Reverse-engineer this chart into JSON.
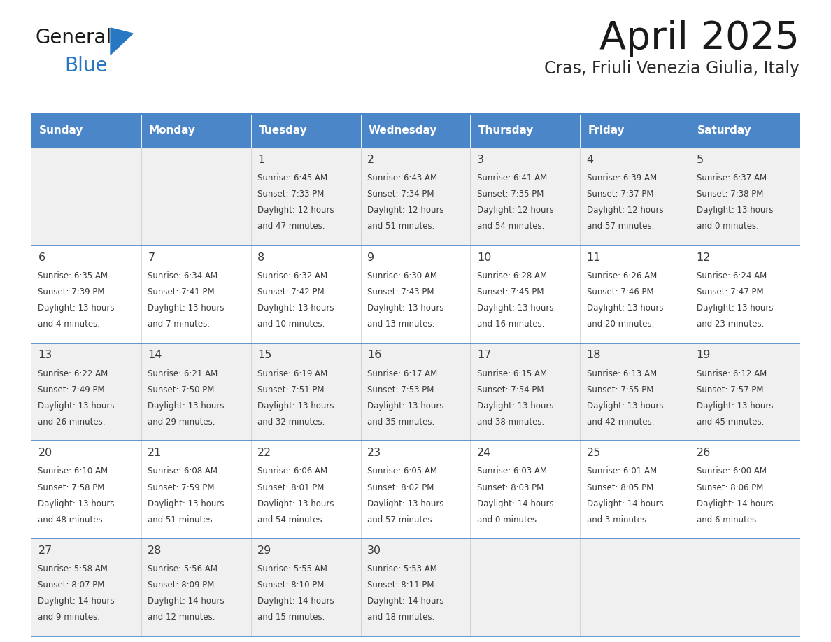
{
  "title": "April 2025",
  "subtitle": "Cras, Friuli Venezia Giulia, Italy",
  "days_of_week": [
    "Sunday",
    "Monday",
    "Tuesday",
    "Wednesday",
    "Thursday",
    "Friday",
    "Saturday"
  ],
  "header_bg": "#4a86c8",
  "header_text": "#ffffff",
  "row_bg_odd": "#f0f0f0",
  "row_bg_even": "#ffffff",
  "border_color": "#4a86c8",
  "text_color": "#3a3a3a",
  "title_color": "#1a1a1a",
  "subtitle_color": "#2a2a2a",
  "logo_general_color": "#1a1a1a",
  "logo_blue_color": "#2777c2",
  "logo_triangle_color": "#2777c2",
  "calendar_data": [
    [
      {
        "day": "",
        "sunrise": "",
        "sunset": "",
        "daylight": ""
      },
      {
        "day": "",
        "sunrise": "",
        "sunset": "",
        "daylight": ""
      },
      {
        "day": "1",
        "sunrise": "6:45 AM",
        "sunset": "7:33 PM",
        "daylight": "12 hours and 47 minutes."
      },
      {
        "day": "2",
        "sunrise": "6:43 AM",
        "sunset": "7:34 PM",
        "daylight": "12 hours and 51 minutes."
      },
      {
        "day": "3",
        "sunrise": "6:41 AM",
        "sunset": "7:35 PM",
        "daylight": "12 hours and 54 minutes."
      },
      {
        "day": "4",
        "sunrise": "6:39 AM",
        "sunset": "7:37 PM",
        "daylight": "12 hours and 57 minutes."
      },
      {
        "day": "5",
        "sunrise": "6:37 AM",
        "sunset": "7:38 PM",
        "daylight": "13 hours and 0 minutes."
      }
    ],
    [
      {
        "day": "6",
        "sunrise": "6:35 AM",
        "sunset": "7:39 PM",
        "daylight": "13 hours and 4 minutes."
      },
      {
        "day": "7",
        "sunrise": "6:34 AM",
        "sunset": "7:41 PM",
        "daylight": "13 hours and 7 minutes."
      },
      {
        "day": "8",
        "sunrise": "6:32 AM",
        "sunset": "7:42 PM",
        "daylight": "13 hours and 10 minutes."
      },
      {
        "day": "9",
        "sunrise": "6:30 AM",
        "sunset": "7:43 PM",
        "daylight": "13 hours and 13 minutes."
      },
      {
        "day": "10",
        "sunrise": "6:28 AM",
        "sunset": "7:45 PM",
        "daylight": "13 hours and 16 minutes."
      },
      {
        "day": "11",
        "sunrise": "6:26 AM",
        "sunset": "7:46 PM",
        "daylight": "13 hours and 20 minutes."
      },
      {
        "day": "12",
        "sunrise": "6:24 AM",
        "sunset": "7:47 PM",
        "daylight": "13 hours and 23 minutes."
      }
    ],
    [
      {
        "day": "13",
        "sunrise": "6:22 AM",
        "sunset": "7:49 PM",
        "daylight": "13 hours and 26 minutes."
      },
      {
        "day": "14",
        "sunrise": "6:21 AM",
        "sunset": "7:50 PM",
        "daylight": "13 hours and 29 minutes."
      },
      {
        "day": "15",
        "sunrise": "6:19 AM",
        "sunset": "7:51 PM",
        "daylight": "13 hours and 32 minutes."
      },
      {
        "day": "16",
        "sunrise": "6:17 AM",
        "sunset": "7:53 PM",
        "daylight": "13 hours and 35 minutes."
      },
      {
        "day": "17",
        "sunrise": "6:15 AM",
        "sunset": "7:54 PM",
        "daylight": "13 hours and 38 minutes."
      },
      {
        "day": "18",
        "sunrise": "6:13 AM",
        "sunset": "7:55 PM",
        "daylight": "13 hours and 42 minutes."
      },
      {
        "day": "19",
        "sunrise": "6:12 AM",
        "sunset": "7:57 PM",
        "daylight": "13 hours and 45 minutes."
      }
    ],
    [
      {
        "day": "20",
        "sunrise": "6:10 AM",
        "sunset": "7:58 PM",
        "daylight": "13 hours and 48 minutes."
      },
      {
        "day": "21",
        "sunrise": "6:08 AM",
        "sunset": "7:59 PM",
        "daylight": "13 hours and 51 minutes."
      },
      {
        "day": "22",
        "sunrise": "6:06 AM",
        "sunset": "8:01 PM",
        "daylight": "13 hours and 54 minutes."
      },
      {
        "day": "23",
        "sunrise": "6:05 AM",
        "sunset": "8:02 PM",
        "daylight": "13 hours and 57 minutes."
      },
      {
        "day": "24",
        "sunrise": "6:03 AM",
        "sunset": "8:03 PM",
        "daylight": "14 hours and 0 minutes."
      },
      {
        "day": "25",
        "sunrise": "6:01 AM",
        "sunset": "8:05 PM",
        "daylight": "14 hours and 3 minutes."
      },
      {
        "day": "26",
        "sunrise": "6:00 AM",
        "sunset": "8:06 PM",
        "daylight": "14 hours and 6 minutes."
      }
    ],
    [
      {
        "day": "27",
        "sunrise": "5:58 AM",
        "sunset": "8:07 PM",
        "daylight": "14 hours and 9 minutes."
      },
      {
        "day": "28",
        "sunrise": "5:56 AM",
        "sunset": "8:09 PM",
        "daylight": "14 hours and 12 minutes."
      },
      {
        "day": "29",
        "sunrise": "5:55 AM",
        "sunset": "8:10 PM",
        "daylight": "14 hours and 15 minutes."
      },
      {
        "day": "30",
        "sunrise": "5:53 AM",
        "sunset": "8:11 PM",
        "daylight": "14 hours and 18 minutes."
      },
      {
        "day": "",
        "sunrise": "",
        "sunset": "",
        "daylight": ""
      },
      {
        "day": "",
        "sunrise": "",
        "sunset": "",
        "daylight": ""
      },
      {
        "day": "",
        "sunrise": "",
        "sunset": "",
        "daylight": ""
      }
    ]
  ]
}
